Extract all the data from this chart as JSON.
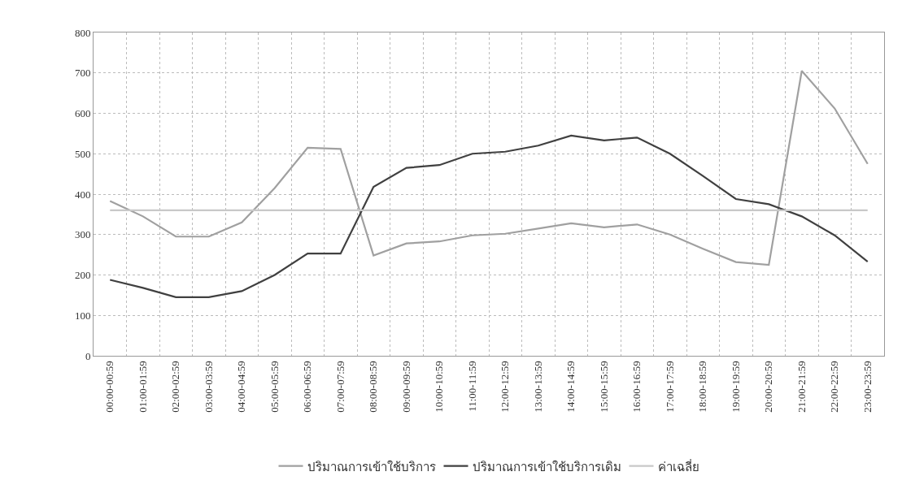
{
  "chart_data": {
    "type": "line",
    "categories": [
      "00:00-00:59",
      "01:00-01:59",
      "02:00-02:59",
      "03:00-03:59",
      "04:00-04:59",
      "05:00-05:59",
      "06:00-06:59",
      "07:00-07:59",
      "08:00-08:59",
      "09:00-09:59",
      "10:00-10:59",
      "11:00-11:59",
      "12:00-12:59",
      "13:00-13:59",
      "14:00-14:59",
      "15:00-15:59",
      "16:00-16:59",
      "17:00-17:59",
      "18:00-18:59",
      "19:00-19:59",
      "20:00-20:59",
      "21:00-21:59",
      "22:00-22:59",
      "23:00-23:59"
    ],
    "series": [
      {
        "name": "ปริมาณการเข้าใช้บริการ",
        "color": "#a0a0a0",
        "values": [
          383,
          345,
          295,
          295,
          330,
          415,
          515,
          512,
          248,
          278,
          283,
          298,
          302,
          315,
          328,
          318,
          325,
          300,
          265,
          232,
          225,
          705,
          612,
          475
        ]
      },
      {
        "name": "ปริมาณการเข้าใช้บริการเดิม",
        "color": "#404040",
        "values": [
          188,
          168,
          145,
          145,
          160,
          200,
          253,
          253,
          418,
          465,
          472,
          500,
          505,
          520,
          545,
          533,
          540,
          500,
          445,
          388,
          375,
          345,
          298,
          233
        ]
      },
      {
        "name": "ค่าเฉลี่ย",
        "color": "#c8c8c8",
        "values": [
          360,
          360,
          360,
          360,
          360,
          360,
          360,
          360,
          360,
          360,
          360,
          360,
          360,
          360,
          360,
          360,
          360,
          360,
          360,
          360,
          360,
          360,
          360,
          360
        ]
      }
    ],
    "ylim": [
      0,
      800
    ],
    "yticks": [
      0,
      100,
      200,
      300,
      400,
      500,
      600,
      700,
      800
    ],
    "grid": true,
    "legend": "bottom",
    "marker": "none",
    "line_style": "solid"
  }
}
